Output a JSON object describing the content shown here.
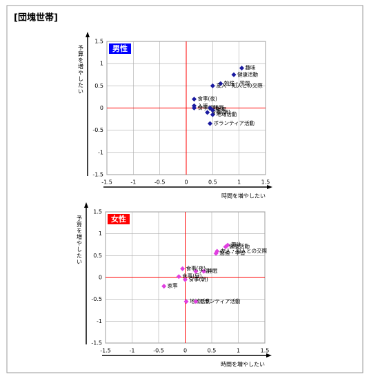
{
  "title": "[団塊世帯]",
  "chart_data": [
    {
      "type": "scatter",
      "xlabel": "時間を増やしたい",
      "ylabel": "予算を増やしたい",
      "xlim": [
        -1.5,
        1.5
      ],
      "ylim": [
        -1.5,
        1.5
      ],
      "xticks": [
        -1.5,
        -1,
        -0.5,
        0,
        0.5,
        1,
        1.5
      ],
      "yticks": [
        -1.5,
        -1,
        -0.5,
        0,
        0.5,
        1,
        1.5
      ],
      "grid": true,
      "legend": "upper left",
      "series": [
        {
          "name": "男性",
          "color": "#1a1aa0",
          "legend_color": "#0000ff",
          "point_labels": [
            "趣味",
            "健康活動",
            "勉強・学習",
            "友人・知人との交際",
            "食事(夜)",
            "入浴",
            "食事(昼)",
            "食事(朝)",
            "睡眠",
            "家事",
            "地域活動",
            "ボランティア活動"
          ],
          "x": [
            1.05,
            0.9,
            0.65,
            0.5,
            0.15,
            0.15,
            0.15,
            0.4,
            0.45,
            0.5,
            0.5,
            0.45
          ],
          "values": [
            0.9,
            0.75,
            0.55,
            0.5,
            0.2,
            0.05,
            0.0,
            -0.1,
            0.0,
            -0.05,
            -0.15,
            -0.35
          ]
        }
      ]
    },
    {
      "type": "scatter",
      "xlabel": "時間を増やしたい",
      "ylabel": "予算を増やしたい",
      "xlim": [
        -1.5,
        1.5
      ],
      "ylim": [
        -1.5,
        1.5
      ],
      "xticks": [
        -1.5,
        -1,
        -0.5,
        0,
        0.5,
        1,
        1.5
      ],
      "yticks": [
        -1.5,
        -1,
        -0.5,
        0,
        0.5,
        1,
        1.5
      ],
      "grid": true,
      "legend": "upper left",
      "series": [
        {
          "name": "女性",
          "color": "#e040e0",
          "legend_color": "#ff0000",
          "point_labels": [
            "趣味",
            "健康活動",
            "友人・知人との交際",
            "勉強・学習",
            "入浴",
            "睡眠",
            "食事(夜)",
            "食事(昼)",
            "食事(朝)",
            "家事",
            "地域活動",
            "ボランティア活動"
          ],
          "x": [
            0.8,
            0.76,
            0.6,
            0.58,
            0.2,
            0.35,
            -0.05,
            -0.12,
            0.0,
            -0.4,
            0.02,
            0.2
          ],
          "values": [
            0.74,
            0.7,
            0.6,
            0.55,
            0.14,
            0.14,
            0.2,
            0.02,
            -0.05,
            -0.2,
            -0.55,
            -0.55
          ]
        }
      ]
    }
  ]
}
